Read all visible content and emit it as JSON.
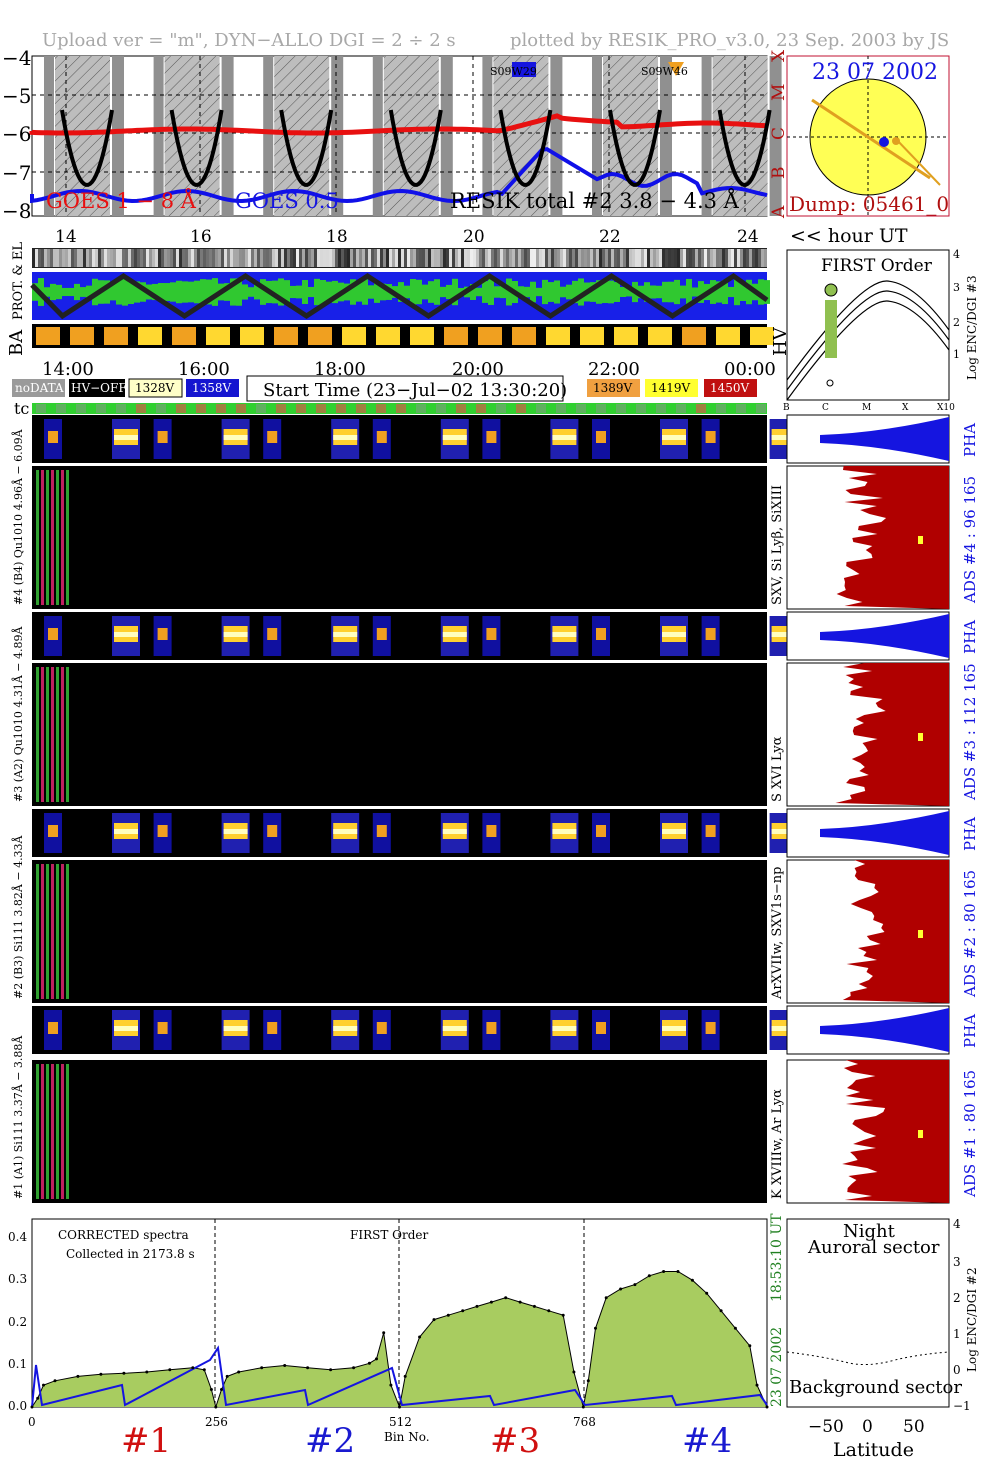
{
  "header": {
    "left": "Upload ver = \"m\", DYN−ALLO DGI =   2 ÷   2 s",
    "right": "plotted by RESIK_PRO_v3.0, 23 Sep. 2003 by JS"
  },
  "goes": {
    "y_ticks": [
      "−4",
      "−5",
      "−6",
      "−7",
      "−8"
    ],
    "class_letters": [
      "X",
      "M",
      "C",
      "B",
      "A"
    ],
    "label_goes18": "GOES 1 − 8 Å",
    "label_goes05": "GOES 0.5",
    "label_resik": "RESIK total #2  3.8 − 4.3 Å",
    "ar1": "S09W29",
    "ar2": "S09W46",
    "hour_ticks": [
      "14",
      "16",
      "18",
      "20",
      "22",
      "24"
    ],
    "hour_label": "<< hour UT"
  },
  "sun": {
    "date": "23 07 2002",
    "dump": "Dump: 05461_0"
  },
  "status": {
    "prot_label": "PROT. & EL",
    "ba_label": "BA",
    "hv_label": "HV",
    "time_ticks": [
      "14:00",
      "16:00",
      "18:00",
      "20:00",
      "22:00",
      "00:00"
    ],
    "legend": [
      "noDATA",
      "HV−OFF",
      "1328V",
      "1358V",
      "1389V",
      "1419V",
      "1450V"
    ],
    "start_time": "Start Time (23−Jul−02 13:30:20)",
    "tc_label": "tc"
  },
  "first_order_plot": {
    "title": "FIRST Order",
    "x_ticks": [
      "B",
      "C",
      "M",
      "X",
      "X10"
    ],
    "y_ticks": [
      "1",
      "2",
      "3",
      "4"
    ],
    "y_label": "Log ENC/DGI #3"
  },
  "channels": [
    {
      "wave": "#1 (A1) Si111  3.37Å − 3.88Å",
      "ions": "K XVIIIw, Ar Lyα",
      "ads": "ADS #1 :   80 165",
      "pha": "PHA"
    },
    {
      "wave": "#2 (B3) Si111  3.82Å − 4.33Å",
      "ions": "ArXVIIw, SXV1s−np",
      "ads": "ADS #2 :   80 165",
      "pha": "PHA"
    },
    {
      "wave": "#3 (A2) Qu1010  4.31Å − 4.89Å",
      "ions": "S XVI Lyα",
      "ads": "ADS #3 :   112 165",
      "pha": "PHA"
    },
    {
      "wave": "#4 (B4) Qu1010  4.96Å − 6.09Å",
      "ions": "SXV, Si Lyβ, SiXIII",
      "ads": "ADS #4 :   96 165",
      "pha": "PHA"
    }
  ],
  "spectrum": {
    "label1": "CORRECTED spectra",
    "label2": "Collected in  2173.8 s",
    "label3": "FIRST Order",
    "y_ticks": [
      "0.0",
      "0.1",
      "0.2",
      "0.3",
      "0.4"
    ],
    "x_ticks": [
      "0",
      "256",
      "512",
      "768"
    ],
    "x_label": "Bin No.",
    "side_date": "23 07 2002",
    "side_time": "18:53:10 UT",
    "channel_labels": [
      "#1",
      "#2",
      "#3",
      "#4"
    ],
    "channel_colors": [
      "#d01010",
      "#1a1ad0",
      "#d01010",
      "#1a1ad0"
    ]
  },
  "lat_plot": {
    "night": "Night",
    "auroral": "Auroral sector",
    "background": "Background sector",
    "x_ticks": [
      "−50",
      "0",
      "50"
    ],
    "x_label": "Latitude",
    "y_ticks": [
      "−1",
      "0",
      "1",
      "2",
      "3",
      "4"
    ],
    "y_label": "Log ENC/DGI #2"
  },
  "chart_data": {
    "type": "line",
    "title": "",
    "xlabel": "Bin No.",
    "ylabel": "",
    "xlim": [
      0,
      1024
    ],
    "ylim": [
      0,
      0.43
    ],
    "series": [
      {
        "x": [
          0,
          8,
          16,
          32,
          64,
          96,
          128,
          160,
          192,
          224,
          240,
          250,
          256,
          264,
          272,
          288,
          320,
          352,
          384,
          416,
          448,
          470,
          480,
          490,
          500,
          512,
          520,
          540,
          560,
          580,
          600,
          620,
          640,
          660,
          680,
          700,
          720,
          740,
          755,
          768,
          775,
          785,
          800,
          820,
          840,
          860,
          880,
          900,
          920,
          940,
          960,
          980,
          1000,
          1010,
          1024
        ],
        "values": [
          0.0,
          0.02,
          0.05,
          0.06,
          0.07,
          0.075,
          0.077,
          0.08,
          0.085,
          0.09,
          0.085,
          0.04,
          0.0,
          0.04,
          0.07,
          0.08,
          0.09,
          0.095,
          0.09,
          0.085,
          0.09,
          0.1,
          0.11,
          0.17,
          0.05,
          0.0,
          0.07,
          0.16,
          0.2,
          0.21,
          0.22,
          0.23,
          0.24,
          0.25,
          0.24,
          0.23,
          0.22,
          0.21,
          0.08,
          0.0,
          0.06,
          0.18,
          0.25,
          0.27,
          0.28,
          0.3,
          0.31,
          0.31,
          0.29,
          0.26,
          0.22,
          0.18,
          0.14,
          0.05,
          0.0
        ]
      }
    ]
  }
}
